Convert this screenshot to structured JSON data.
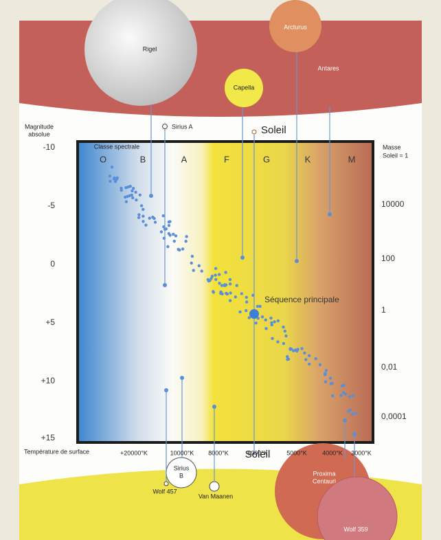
{
  "left_axis": {
    "title_lines": [
      "Magnitude",
      "absolue"
    ],
    "labels": [
      "-10",
      "-5",
      "0",
      "+5",
      "+10",
      "+15"
    ]
  },
  "right_axis": {
    "title_lines": [
      "Masse",
      "Soleil = 1"
    ],
    "labels": [
      "10000",
      "100",
      "1",
      "0,01",
      "0,0001"
    ]
  },
  "spectral": {
    "title": "Classe spectrale",
    "classes": [
      "O",
      "B",
      "A",
      "F",
      "G",
      "K",
      "M"
    ]
  },
  "temperature": {
    "title": "Température de surface",
    "labels": [
      "+20000°K",
      "10000°K",
      "8000°K",
      "6000°K",
      "5000°K",
      "4000°K",
      "3000°K"
    ]
  },
  "main_sequence_label": "Séquence principale",
  "stars": {
    "rigel": "Rigel",
    "arcturus": "Arcturus",
    "antares": "Antares",
    "capella": "Capella",
    "sirius_a": "Sirius A",
    "soleil_top": "Soleil",
    "soleil_bottom": "Soleil",
    "sirius_b": [
      "Sirius",
      "B"
    ],
    "wolf_457": "Wolf 457",
    "van_maanen": "Van Maanen",
    "proxima": [
      "Proxima",
      "Centauri"
    ],
    "wolf_359": "Wolf 359"
  }
}
